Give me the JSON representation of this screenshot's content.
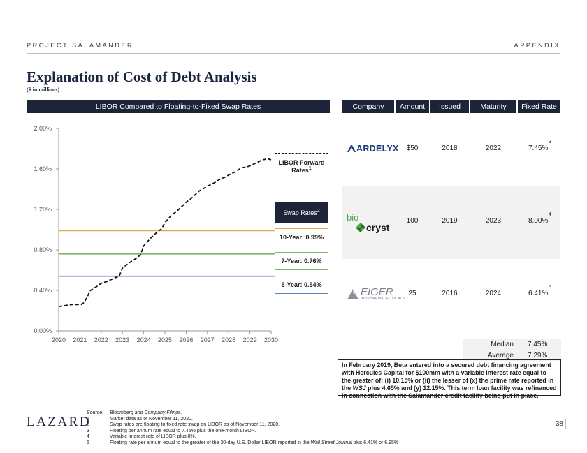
{
  "header": {
    "project": "PROJECT SALAMANDER",
    "section": "APPENDIX"
  },
  "title": "Explanation of Cost of Debt Analysis",
  "subtitle": "($ in millions)",
  "chart_section_title": "LIBOR Compared to Floating-to-Fixed Swap Rates",
  "chart_data": {
    "type": "line",
    "title": "LIBOR Compared to Floating-to-Fixed Swap Rates",
    "ylim": [
      0,
      2.0
    ],
    "xlim": [
      2020,
      2030
    ],
    "yticks": [
      "0.00%",
      "0.40%",
      "0.80%",
      "1.20%",
      "1.60%",
      "2.00%"
    ],
    "ytick_values": [
      0,
      0.4,
      0.8,
      1.2,
      1.6,
      2.0
    ],
    "xticks": [
      "2020",
      "2021",
      "2022",
      "2023",
      "2024",
      "2025",
      "2026",
      "2027",
      "2028",
      "2029",
      "2030"
    ],
    "series": [
      {
        "name": "LIBOR Forward Rates",
        "style": "dashed",
        "color": "#111111",
        "x": [
          2020.0,
          2020.3,
          2020.6,
          2020.9,
          2021.05,
          2021.2,
          2021.5,
          2021.8,
          2022.0,
          2022.3,
          2022.6,
          2022.85,
          2023.0,
          2023.3,
          2023.6,
          2023.85,
          2024.0,
          2024.3,
          2024.6,
          2024.85,
          2025.0,
          2025.3,
          2025.6,
          2025.85,
          2026.0,
          2026.3,
          2026.6,
          2026.85,
          2027.0,
          2027.3,
          2027.6,
          2027.85,
          2028.0,
          2028.3,
          2028.6,
          2028.85,
          2029.0,
          2029.3,
          2029.6,
          2029.85,
          2030.0
        ],
        "y": [
          0.24,
          0.25,
          0.26,
          0.26,
          0.26,
          0.28,
          0.4,
          0.44,
          0.47,
          0.49,
          0.52,
          0.54,
          0.62,
          0.67,
          0.71,
          0.75,
          0.84,
          0.91,
          0.97,
          1.01,
          1.07,
          1.14,
          1.19,
          1.24,
          1.27,
          1.32,
          1.38,
          1.41,
          1.43,
          1.46,
          1.5,
          1.52,
          1.54,
          1.57,
          1.61,
          1.62,
          1.63,
          1.66,
          1.69,
          1.7,
          1.69
        ]
      },
      {
        "name": "10-Year",
        "style": "solid",
        "color": "#e5a356",
        "value": 0.99
      },
      {
        "name": "7-Year",
        "style": "solid",
        "color": "#7ab86a",
        "value": 0.76
      },
      {
        "name": "5-Year",
        "style": "solid",
        "color": "#5b86b5",
        "value": 0.54
      }
    ],
    "annotations": {
      "libor": "LIBOR Forward Rates",
      "libor_sup": "1",
      "swap": "Swap Rates",
      "swap_sup": "2",
      "y10": "10-Year: 0.99%",
      "y7": "7-Year: 0.76%",
      "y5": "5-Year: 0.54%"
    }
  },
  "table": {
    "headers": [
      "Company",
      "Amount",
      "Issued",
      "Maturity",
      "Fixed Rate"
    ],
    "rows": [
      {
        "company": "ARDELYX",
        "amount": "$50",
        "issued": "2018",
        "maturity": "2022",
        "fixed_rate": "7.45%",
        "footnote": "3"
      },
      {
        "company": "biocryst",
        "company_part1": "bio",
        "company_part2": "cryst",
        "amount": "100",
        "issued": "2019",
        "maturity": "2023",
        "fixed_rate": "8.00%",
        "footnote": "4"
      },
      {
        "company": "EIGER",
        "company_sub": "BIOPHARMACEUTICALS",
        "amount": "25",
        "issued": "2016",
        "maturity": "2024",
        "fixed_rate": "6.41%",
        "footnote": "5"
      }
    ],
    "summary": [
      {
        "label": "Median",
        "value": "7.45%"
      },
      {
        "label": "Average",
        "value": "7.29%"
      }
    ]
  },
  "note": {
    "part1": "In February 2019, Beta entered into a secured debt financing agreement with Hercules Capital for $100mm with a variable interest rate equal to the greater of: (i) 10.15% or (ii) the lesser of (x) the prime rate reported in the ",
    "wsj": "WSJ",
    "part2": " plus 4.65% and (y) 12.15%. This term loan facility was refinanced in connection with the Salamander credit facility being put in place."
  },
  "footnotes": {
    "source_label": "Source:",
    "source": "Bloomberg and Company Filings.",
    "items": [
      {
        "num": "1",
        "text": "Market data as of November 11, 2020."
      },
      {
        "num": "2",
        "text": "Swap rates are floating to fixed rate swap on LIBOR as of November 11, 2020."
      },
      {
        "num": "3",
        "text": "Floating per annum rate equal to 7.45% plus the one-month LIBOR."
      },
      {
        "num": "4",
        "text": "Variable interest rate of LIBOR plus 8%."
      }
    ],
    "item5_num": "5",
    "item5_a": "Floating rate per annum equal to the greater of the 30-day U.S. Dollar LIBOR reported in the ",
    "item5_wsj": "Wall Street Journal",
    "item5_b": " plus 6.41% or 6.95%"
  },
  "footer": {
    "brand": "LAZARD",
    "page": "38"
  }
}
